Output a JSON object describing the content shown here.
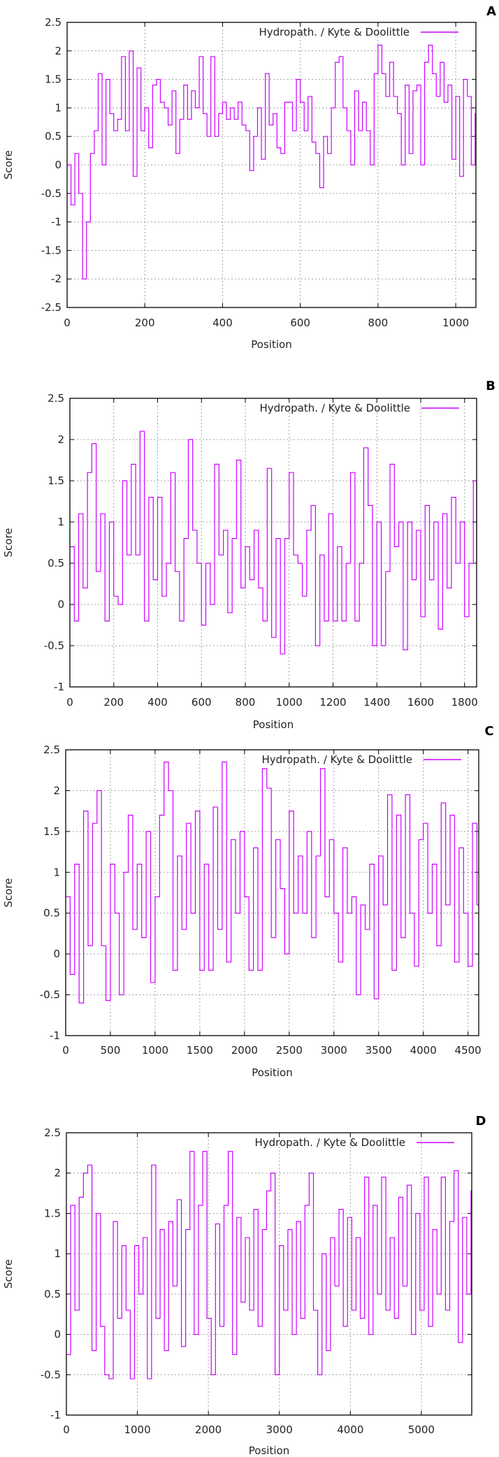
{
  "line_color": "#cc00ff",
  "chart_data": [
    {
      "panel": "A",
      "type": "line",
      "legend": "Hydropath. / Kyte & Doolittle",
      "legend_position": "top-right",
      "xlabel": "Position",
      "ylabel": "Score",
      "xlim": [
        0,
        1052
      ],
      "ylim": [
        -2.5,
        2.5
      ],
      "grid": true,
      "xticks": [
        "0",
        "200",
        "400",
        "600",
        "800",
        "1000"
      ],
      "yticks": [
        "-2.5",
        "-2",
        "-1.5",
        "-1",
        "-0.5",
        "0",
        "0.5",
        "1",
        "1.5",
        "2",
        "2.5"
      ],
      "x_step": 10,
      "values": [
        0,
        -0.7,
        0.2,
        -0.5,
        -2.0,
        -1.0,
        0.2,
        0.6,
        1.6,
        0.0,
        1.5,
        0.9,
        0.6,
        0.8,
        1.9,
        0.6,
        2.0,
        -0.2,
        1.7,
        0.6,
        1.0,
        0.3,
        1.4,
        1.5,
        1.1,
        1.0,
        0.7,
        1.3,
        0.2,
        0.8,
        1.4,
        0.8,
        1.3,
        1.0,
        1.9,
        0.9,
        0.5,
        1.9,
        0.5,
        0.9,
        1.1,
        0.8,
        1.0,
        0.8,
        1.1,
        0.7,
        0.6,
        -0.1,
        0.5,
        1.0,
        0.1,
        1.6,
        0.7,
        0.9,
        0.3,
        0.2,
        1.1,
        1.1,
        0.6,
        1.5,
        1.1,
        0.6,
        1.2,
        0.4,
        0.2,
        -0.4,
        0.5,
        0.2,
        1.0,
        1.8,
        1.9,
        1.0,
        0.6,
        0.0,
        1.3,
        0.6,
        1.1,
        0.6,
        0.0,
        1.6,
        2.1,
        1.6,
        1.2,
        1.8,
        1.2,
        0.9,
        0.0,
        1.4,
        0.2,
        1.3,
        1.4,
        0.0,
        1.8,
        2.1,
        1.6,
        1.2,
        1.8,
        1.1,
        1.4,
        0.1,
        1.2,
        -0.2,
        1.5,
        1.2,
        0.0,
        0.9
      ]
    },
    {
      "panel": "B",
      "type": "line",
      "legend": "Hydropath. / Kyte & Doolittle",
      "legend_position": "top-right",
      "xlabel": "Position",
      "ylabel": "Score",
      "xlim": [
        0,
        1855
      ],
      "ylim": [
        -1,
        2.5
      ],
      "grid": true,
      "xticks": [
        "0",
        "200",
        "400",
        "600",
        "800",
        "1000",
        "1200",
        "1400",
        "1600",
        "1800"
      ],
      "yticks": [
        "-1",
        "-0.5",
        "0",
        "0.5",
        "1",
        "1.5",
        "2",
        "2.5"
      ],
      "x_step": 20,
      "values": [
        0.7,
        -0.2,
        1.1,
        0.2,
        1.6,
        1.95,
        0.4,
        1.1,
        -0.2,
        1.0,
        0.1,
        0.0,
        1.5,
        0.6,
        1.7,
        0.6,
        2.1,
        -0.2,
        1.3,
        0.3,
        1.3,
        0.1,
        0.5,
        1.6,
        0.4,
        -0.2,
        0.8,
        2.0,
        0.9,
        0.5,
        -0.25,
        0.5,
        0.0,
        1.7,
        0.6,
        0.9,
        -0.1,
        0.8,
        1.75,
        0.2,
        0.7,
        0.3,
        0.9,
        0.2,
        -0.2,
        1.65,
        -0.4,
        0.8,
        -0.6,
        0.8,
        1.6,
        0.6,
        0.5,
        0.1,
        0.9,
        1.2,
        -0.5,
        0.6,
        -0.2,
        1.1,
        -0.2,
        0.7,
        -0.2,
        0.5,
        1.6,
        -0.2,
        0.5,
        1.9,
        1.2,
        -0.5,
        1.0,
        -0.5,
        0.4,
        1.7,
        0.7,
        1.0,
        -0.55,
        1.0,
        0.3,
        0.9,
        -0.15,
        1.2,
        0.3,
        1.0,
        -0.3,
        1.1,
        0.2,
        1.3,
        0.5,
        1.0,
        -0.15,
        0.5,
        1.5,
        0.5
      ]
    },
    {
      "panel": "C",
      "type": "line",
      "legend": "Hydropath. / Kyte & Doolittle",
      "legend_position": "top-right",
      "xlabel": "Position",
      "ylabel": "Score",
      "xlim": [
        0,
        4620
      ],
      "ylim": [
        -1,
        2.5
      ],
      "grid": true,
      "xticks": [
        "0",
        "500",
        "1000",
        "1500",
        "2000",
        "2500",
        "3000",
        "3500",
        "4000",
        "4500"
      ],
      "yticks": [
        "-1",
        "-0.5",
        "0",
        "0.5",
        "1",
        "1.5",
        "2",
        "2.5"
      ],
      "x_step": 50,
      "values": [
        0.7,
        -0.25,
        1.1,
        -0.6,
        1.75,
        0.1,
        1.6,
        2.0,
        0.1,
        -0.57,
        1.1,
        0.5,
        -0.5,
        1.0,
        1.7,
        0.3,
        1.1,
        0.2,
        1.5,
        -0.35,
        0.7,
        1.7,
        2.35,
        2.0,
        -0.2,
        1.2,
        0.3,
        1.6,
        0.5,
        1.75,
        -0.2,
        1.1,
        -0.2,
        1.8,
        0.3,
        2.35,
        -0.1,
        1.4,
        0.5,
        1.5,
        0.7,
        -0.2,
        1.3,
        -0.2,
        2.27,
        2.03,
        0.2,
        1.4,
        0.8,
        0.0,
        1.75,
        0.5,
        1.2,
        0.5,
        1.5,
        0.2,
        1.2,
        2.27,
        0.7,
        1.4,
        0.5,
        -0.1,
        1.3,
        0.5,
        0.7,
        -0.5,
        0.6,
        0.3,
        1.1,
        -0.55,
        1.2,
        0.6,
        1.95,
        -0.2,
        1.7,
        0.2,
        1.95,
        0.5,
        -0.15,
        1.4,
        1.6,
        0.5,
        1.1,
        0.1,
        1.85,
        0.6,
        1.7,
        -0.1,
        1.3,
        0.5,
        -0.15,
        1.6,
        0.6
      ]
    },
    {
      "panel": "D",
      "type": "line",
      "legend": "Hydropath. / Kyte & Doolittle",
      "legend_position": "top-right",
      "xlabel": "Position",
      "ylabel": "Score",
      "xlim": [
        0,
        5710
      ],
      "ylim": [
        -1,
        2.5
      ],
      "grid": true,
      "xticks": [
        "0",
        "1000",
        "2000",
        "3000",
        "4000",
        "5000"
      ],
      "yticks": [
        "-1",
        "-0.5",
        "0",
        "0.5",
        "1",
        "1.5",
        "2",
        "2.5"
      ],
      "x_step": 60,
      "values": [
        -0.25,
        1.6,
        0.3,
        1.7,
        2.0,
        2.1,
        -0.2,
        1.5,
        0.1,
        -0.5,
        -0.55,
        1.4,
        0.2,
        1.1,
        0.3,
        -0.55,
        1.1,
        0.5,
        1.2,
        -0.55,
        2.1,
        0.2,
        1.3,
        -0.2,
        1.4,
        0.6,
        1.67,
        -0.15,
        1.3,
        2.27,
        0.0,
        1.6,
        2.27,
        0.2,
        -0.5,
        1.37,
        0.1,
        1.6,
        2.27,
        -0.25,
        1.45,
        0.4,
        1.2,
        0.3,
        1.55,
        0.1,
        1.3,
        1.78,
        2.0,
        -0.5,
        1.1,
        0.3,
        1.3,
        0.0,
        1.4,
        0.2,
        1.6,
        2.0,
        0.3,
        -0.5,
        1.0,
        -0.2,
        1.2,
        0.6,
        1.55,
        0.1,
        1.45,
        0.3,
        1.2,
        0.2,
        1.95,
        0.0,
        1.6,
        0.5,
        1.95,
        0.3,
        1.2,
        0.2,
        1.7,
        0.6,
        1.85,
        0.0,
        1.5,
        0.3,
        1.95,
        0.1,
        1.3,
        0.5,
        1.95,
        0.3,
        1.4,
        2.03,
        -0.1,
        1.45,
        0.5,
        1.78
      ]
    }
  ]
}
